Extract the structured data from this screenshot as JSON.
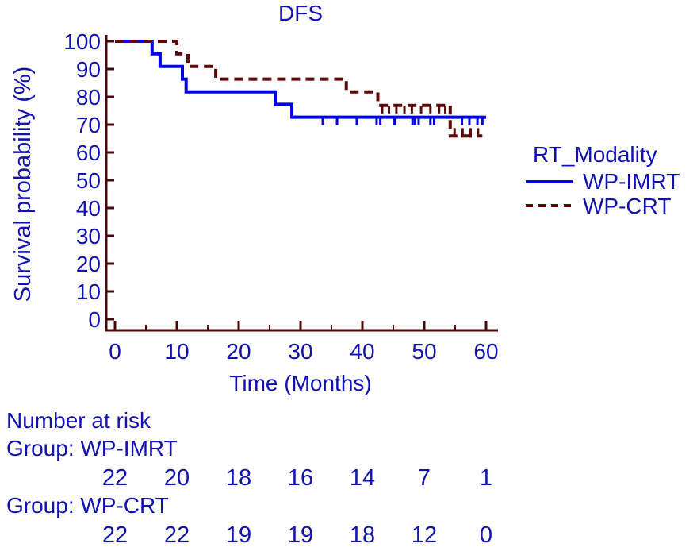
{
  "colors": {
    "text_blue": "#1111b0",
    "curve_blue": "#0000e6",
    "curve_maroon": "#5e0909",
    "axis_maroon": "#4a0808",
    "background": "#ffffff"
  },
  "chart_data": {
    "type": "line",
    "subtype": "kaplan-meier-step",
    "title": "DFS",
    "xlabel": "Time (Months)",
    "ylabel": "Survival probability (%)",
    "xlim": [
      0,
      60
    ],
    "ylim": [
      0,
      100
    ],
    "xticks": [
      0,
      10,
      20,
      30,
      40,
      50,
      60
    ],
    "xticks_minor": [
      5,
      15,
      25,
      35,
      45,
      55
    ],
    "yticks": [
      100,
      90,
      80,
      70,
      60,
      50,
      40,
      30,
      20,
      10,
      0
    ],
    "grid": "off",
    "legend": {
      "title": "RT_Modality",
      "position": "right"
    },
    "series": [
      {
        "name": "WP-IMRT",
        "line_style": "solid",
        "color": "#0000e6",
        "steps": [
          [
            0,
            100
          ],
          [
            6,
            100
          ],
          [
            6,
            95.5
          ],
          [
            7.3,
            95.5
          ],
          [
            7.3,
            90.9
          ],
          [
            10.9,
            90.9
          ],
          [
            10.9,
            86.4
          ],
          [
            11.5,
            86.4
          ],
          [
            11.5,
            81.8
          ],
          [
            25.9,
            81.8
          ],
          [
            25.9,
            77.3
          ],
          [
            28.6,
            77.3
          ],
          [
            28.6,
            72.7
          ],
          [
            60,
            72.7
          ]
        ],
        "censor_groups": [
          {
            "level": 72.7,
            "dir": "down",
            "times": [
              33.6,
              35.9,
              39.1,
              42.3,
              42.9,
              45.2,
              48.1,
              48.5,
              49.1,
              51.0,
              51.6,
              56.1,
              57.3,
              58.6,
              59.4
            ]
          }
        ]
      },
      {
        "name": "WP-CRT",
        "line_style": "dashed",
        "color": "#5e0909",
        "steps": [
          [
            0,
            100
          ],
          [
            10,
            100
          ],
          [
            10,
            95.5
          ],
          [
            11.8,
            95.5
          ],
          [
            11.8,
            90.9
          ],
          [
            16.3,
            90.9
          ],
          [
            16.3,
            86.4
          ],
          [
            37.4,
            86.4
          ],
          [
            37.4,
            81.8
          ],
          [
            42.5,
            81.8
          ],
          [
            42.5,
            76.9
          ],
          [
            54.2,
            76.9
          ],
          [
            54.2,
            65.9
          ],
          [
            59.4,
            65.9
          ]
        ],
        "censor_groups": [
          {
            "level": 76.9,
            "dir": "down",
            "times": [
              43.2,
              44.3,
              45.5,
              46.8,
              48.0,
              49.5,
              51.0,
              52.4,
              53.4
            ]
          },
          {
            "level": 65.9,
            "dir": "up",
            "times": [
              54.9,
              56.2,
              57.5,
              58.7
            ]
          }
        ]
      }
    ],
    "risk_table": {
      "title": "Number at risk",
      "times": [
        0,
        10,
        20,
        30,
        40,
        50,
        60
      ],
      "rows": [
        {
          "label": "Group: WP-IMRT",
          "counts": [
            22,
            20,
            18,
            16,
            14,
            7,
            1
          ]
        },
        {
          "label": "Group: WP-CRT",
          "counts": [
            22,
            22,
            19,
            19,
            18,
            12,
            0
          ]
        }
      ]
    }
  }
}
